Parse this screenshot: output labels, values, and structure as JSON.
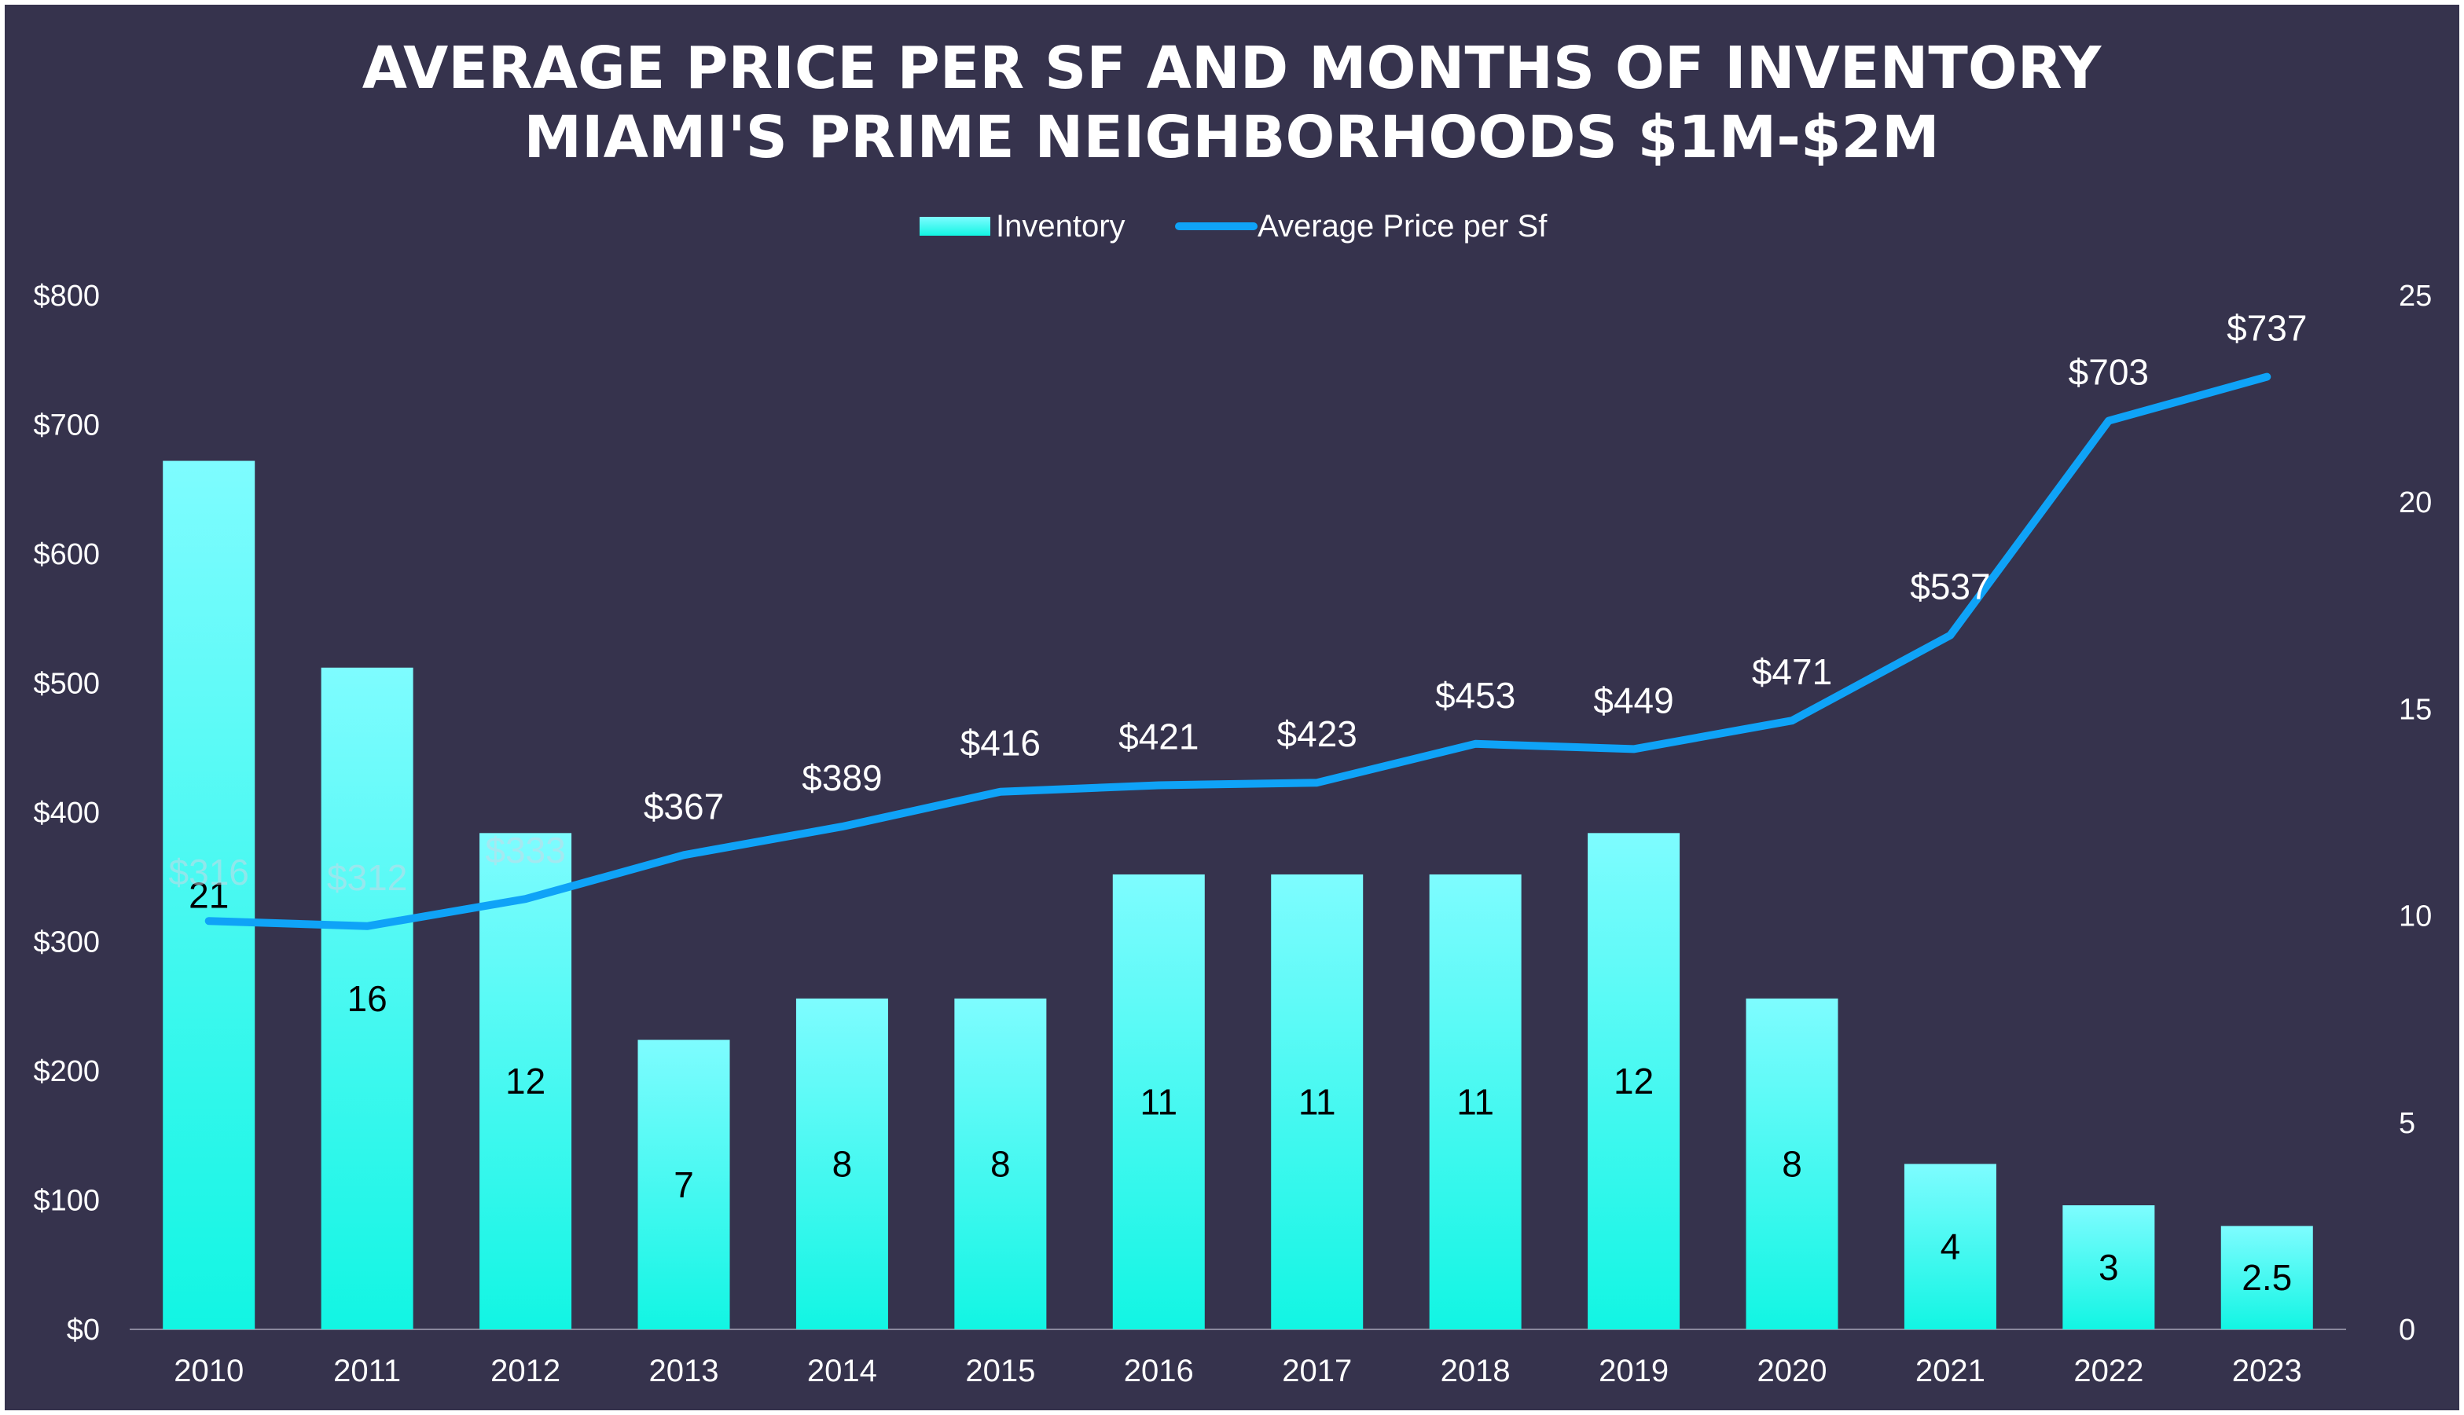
{
  "chart_data": {
    "type": "bar",
    "title_lines": [
      "AVERAGE PRICE PER SF AND MONTHS OF INVENTORY",
      "MIAMI'S PRIME NEIGHBORHOODS $1M-$2M"
    ],
    "categories": [
      "2010",
      "2011",
      "2012",
      "2013",
      "2014",
      "2015",
      "2016",
      "2017",
      "2018",
      "2019",
      "2020",
      "2021",
      "2022",
      "2023"
    ],
    "series": [
      {
        "name": "Inventory",
        "type": "bar",
        "axis": "right",
        "values": [
          21,
          16,
          12,
          7,
          8,
          8,
          11,
          11,
          11,
          12,
          8,
          4,
          3,
          2.5
        ],
        "labels": [
          "21",
          "16",
          "12",
          "7",
          "8",
          "8",
          "11",
          "11",
          "11",
          "12",
          "8",
          "4",
          "3",
          "2.5"
        ]
      },
      {
        "name": "Average Price per Sf",
        "type": "line",
        "axis": "left",
        "values": [
          316,
          312,
          333,
          367,
          389,
          416,
          421,
          423,
          453,
          449,
          471,
          537,
          703,
          737
        ],
        "labels": [
          "$316",
          "$312",
          "$333",
          "$367",
          "$389",
          "$416",
          "$421",
          "$423",
          "$453",
          "$449",
          "$471",
          "$537",
          "$703",
          "$737"
        ]
      }
    ],
    "y_left": {
      "ylim": [
        0,
        800
      ],
      "ticks": [
        "$0",
        "$100",
        "$200",
        "$300",
        "$400",
        "$500",
        "$600",
        "$700",
        "$800"
      ]
    },
    "y_right": {
      "ylim": [
        0,
        25
      ],
      "ticks": [
        "0",
        "5",
        "10",
        "15",
        "20",
        "25"
      ]
    },
    "legend": {
      "position": "top-center",
      "entries": [
        "Inventory",
        "Average Price per Sf"
      ]
    },
    "colors": {
      "background": "#36334d",
      "bar_top": "#7efcff",
      "bar_bottom": "#12f5e3",
      "line": "#0fa3f7",
      "text": "#ffffff",
      "frame": "#ffffff"
    }
  }
}
